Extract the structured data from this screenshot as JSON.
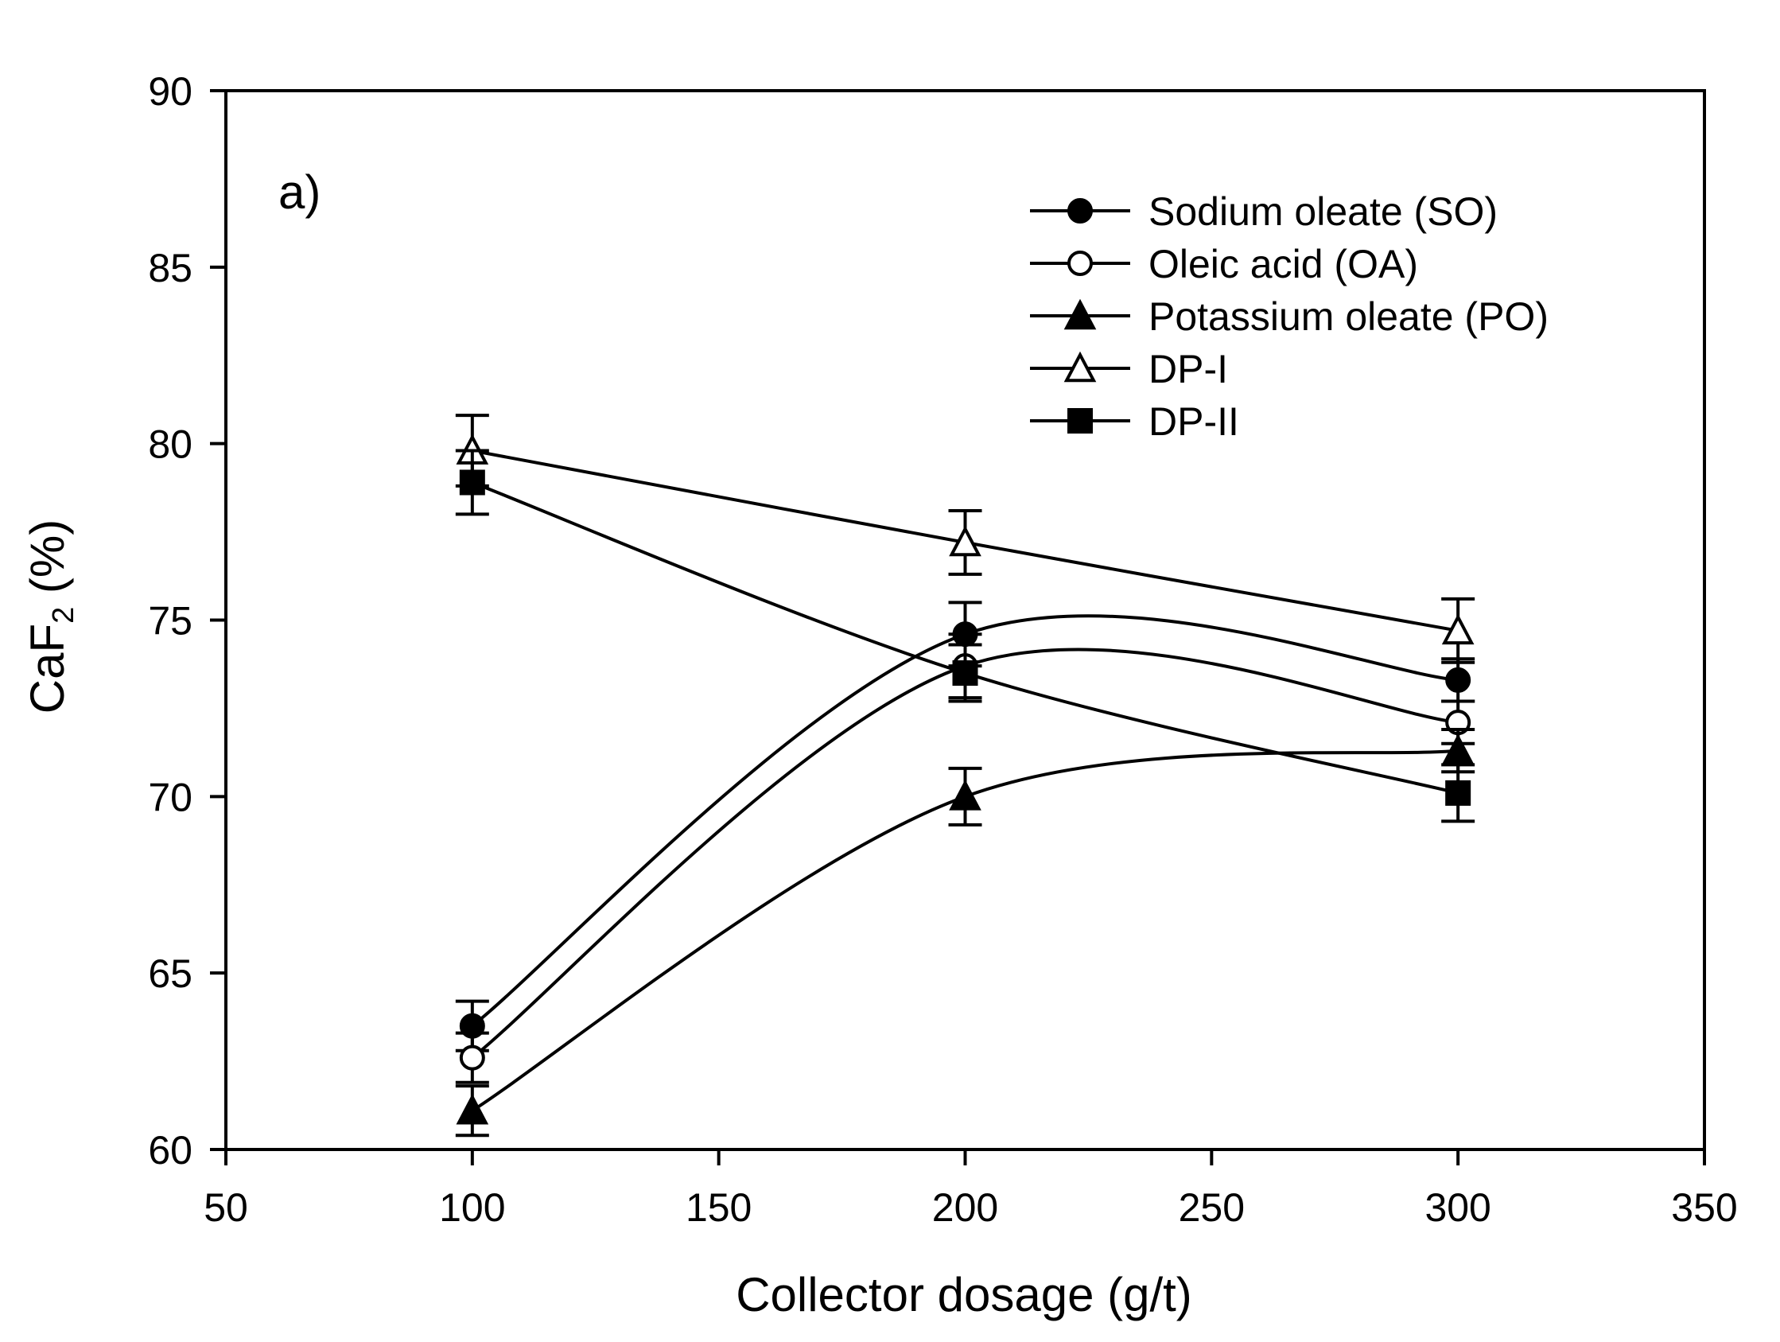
{
  "chart_data": {
    "type": "line",
    "panel_label": "a)",
    "title": "",
    "xlabel": "Collector dosage (g/t)",
    "ylabel": {
      "base": "CaF",
      "subscript": "2",
      "suffix": " (%)"
    },
    "xlim": [
      50,
      350
    ],
    "ylim": [
      60,
      90
    ],
    "xticks": [
      50,
      100,
      150,
      200,
      250,
      300,
      350
    ],
    "yticks": [
      60,
      65,
      70,
      75,
      80,
      85,
      90
    ],
    "grid": false,
    "legend_position": "top-right",
    "x": [
      100,
      200,
      300
    ],
    "series": [
      {
        "name": "Sodium oleate (SO)",
        "marker": "circle-filled",
        "values": [
          63.5,
          74.6,
          73.3
        ],
        "errors": [
          0.7,
          0.9,
          0.6
        ]
      },
      {
        "name": "Oleic acid (OA)",
        "marker": "circle-open",
        "values": [
          62.6,
          73.7,
          72.1
        ],
        "errors": [
          0.7,
          0.9,
          0.6
        ]
      },
      {
        "name": "Potassium oleate (PO)",
        "marker": "triangle-filled",
        "values": [
          61.1,
          70.0,
          71.3
        ],
        "errors": [
          0.7,
          0.8,
          0.6
        ]
      },
      {
        "name": "DP-I",
        "marker": "triangle-open",
        "values": [
          79.8,
          77.2,
          74.7
        ],
        "errors": [
          1.0,
          0.9,
          0.9
        ]
      },
      {
        "name": "DP-II",
        "marker": "square-filled",
        "values": [
          78.9,
          73.5,
          70.1
        ],
        "errors": [
          0.9,
          0.8,
          0.8
        ]
      }
    ],
    "colors": {
      "line": "#000000",
      "background": "#ffffff"
    }
  }
}
